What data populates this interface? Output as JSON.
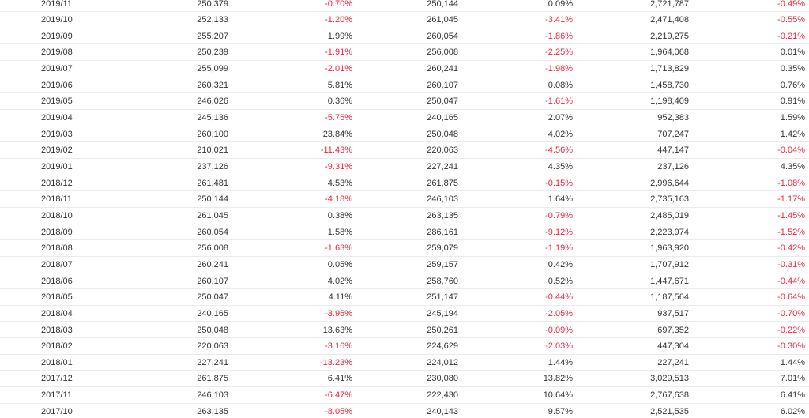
{
  "table": {
    "rows": [
      [
        "2019/11",
        "250,379",
        "-0.70%",
        "250,144",
        "0.09%",
        "2,721,787",
        "-0.49%"
      ],
      [
        "2019/10",
        "252,133",
        "-1.20%",
        "261,045",
        "-3.41%",
        "2,471,408",
        "-0.55%"
      ],
      [
        "2019/09",
        "255,207",
        "1.99%",
        "260,054",
        "-1.86%",
        "2,219,275",
        "-0.21%"
      ],
      [
        "2019/08",
        "250,239",
        "-1.91%",
        "256,008",
        "-2.25%",
        "1,964,068",
        "0.01%"
      ],
      [
        "2019/07",
        "255,099",
        "-2.01%",
        "260,241",
        "-1.98%",
        "1,713,829",
        "0.35%"
      ],
      [
        "2019/06",
        "260,321",
        "5.81%",
        "260,107",
        "0.08%",
        "1,458,730",
        "0.76%"
      ],
      [
        "2019/05",
        "246,026",
        "0.36%",
        "250,047",
        "-1.61%",
        "1,198,409",
        "0.91%"
      ],
      [
        "2019/04",
        "245,136",
        "-5.75%",
        "240,165",
        "2.07%",
        "952,383",
        "1.59%"
      ],
      [
        "2019/03",
        "260,100",
        "23.84%",
        "250,048",
        "4.02%",
        "707,247",
        "1.42%"
      ],
      [
        "2019/02",
        "210,021",
        "-11.43%",
        "220,063",
        "-4.56%",
        "447,147",
        "-0.04%"
      ],
      [
        "2019/01",
        "237,126",
        "-9.31%",
        "227,241",
        "4.35%",
        "237,126",
        "4.35%"
      ],
      [
        "2018/12",
        "261,481",
        "4.53%",
        "261,875",
        "-0.15%",
        "2,996,644",
        "-1.08%"
      ],
      [
        "2018/11",
        "250,144",
        "-4.18%",
        "246,103",
        "1.64%",
        "2,735,163",
        "-1.17%"
      ],
      [
        "2018/10",
        "261,045",
        "0.38%",
        "263,135",
        "-0.79%",
        "2,485,019",
        "-1.45%"
      ],
      [
        "2018/09",
        "260,054",
        "1.58%",
        "286,161",
        "-9.12%",
        "2,223,974",
        "-1.52%"
      ],
      [
        "2018/08",
        "256,008",
        "-1.63%",
        "259,079",
        "-1.19%",
        "1,963,920",
        "-0.42%"
      ],
      [
        "2018/07",
        "260,241",
        "0.05%",
        "259,157",
        "0.42%",
        "1,707,912",
        "-0.31%"
      ],
      [
        "2018/06",
        "260,107",
        "4.02%",
        "258,760",
        "0.52%",
        "1,447,671",
        "-0.44%"
      ],
      [
        "2018/05",
        "250,047",
        "4.11%",
        "251,147",
        "-0.44%",
        "1,187,564",
        "-0.64%"
      ],
      [
        "2018/04",
        "240,165",
        "-3.95%",
        "245,194",
        "-2.05%",
        "937,517",
        "-0.70%"
      ],
      [
        "2018/03",
        "250,048",
        "13.63%",
        "250,261",
        "-0.09%",
        "697,352",
        "-0.22%"
      ],
      [
        "2018/02",
        "220,063",
        "-3.16%",
        "224,629",
        "-2.03%",
        "447,304",
        "-0.30%"
      ],
      [
        "2018/01",
        "227,241",
        "-13.23%",
        "224,012",
        "1.44%",
        "227,241",
        "1.44%"
      ],
      [
        "2017/12",
        "261,875",
        "6.41%",
        "230,080",
        "13.82%",
        "3,029,513",
        "7.01%"
      ],
      [
        "2017/11",
        "246,103",
        "-6.47%",
        "222,430",
        "10.64%",
        "2,767,638",
        "6.41%"
      ],
      [
        "2017/10",
        "263,135",
        "-8.05%",
        "240,143",
        "9.57%",
        "2,521,535",
        "6.02%"
      ]
    ]
  }
}
